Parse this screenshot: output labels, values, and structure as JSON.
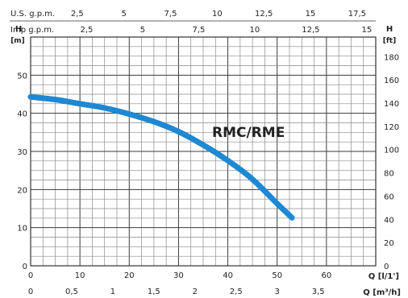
{
  "colors": {
    "curve": "#1e88d2",
    "grid": "#3a3a3a",
    "gridMinor": "#8a8a8a"
  },
  "chart_data": {
    "type": "line",
    "grid": true,
    "series": [
      {
        "name": "RMC/RME",
        "x": [
          0,
          5,
          10,
          15,
          20,
          25,
          30,
          35,
          40,
          45,
          50,
          53
        ],
        "y": [
          44.3,
          43.6,
          42.5,
          41.4,
          39.8,
          37.8,
          35.2,
          31.7,
          27.6,
          22.7,
          16.3,
          12.6
        ]
      }
    ],
    "axes": {
      "x_bottom": {
        "label": "Q [l/1']",
        "range": [
          0,
          70
        ],
        "ticks": [
          "0",
          "10",
          "20",
          "30",
          "40",
          "50",
          "60"
        ]
      },
      "x_m3h": {
        "label": "Q [m³/h]",
        "range": [
          0,
          4.2
        ],
        "ticks": [
          "0",
          "0,5",
          "1",
          "1,5",
          "2",
          "2,5",
          "3",
          "3,5"
        ]
      },
      "x_us_gpm": {
        "label": "U.S. g.p.m.",
        "range": [
          0,
          18.5
        ],
        "ticks": [
          "2,5",
          "5",
          "7,5",
          "10",
          "12,5",
          "15",
          "17,5"
        ]
      },
      "x_imp_gpm": {
        "label": "Imp g.p.m.",
        "range": [
          0,
          15.4
        ],
        "ticks": [
          "2,5",
          "5",
          "7,5",
          "10",
          "12,5",
          "15"
        ]
      },
      "y_left": {
        "title": "H",
        "unit": "[m]",
        "range": [
          0,
          60
        ],
        "ticks": [
          "0",
          "10",
          "20",
          "30",
          "40",
          "50"
        ]
      },
      "y_right": {
        "title": "H",
        "unit": "[ft]",
        "range": [
          0,
          196.85
        ],
        "ticks": [
          "0",
          "20",
          "40",
          "60",
          "80",
          "100",
          "120",
          "140",
          "160",
          "180"
        ]
      }
    }
  }
}
